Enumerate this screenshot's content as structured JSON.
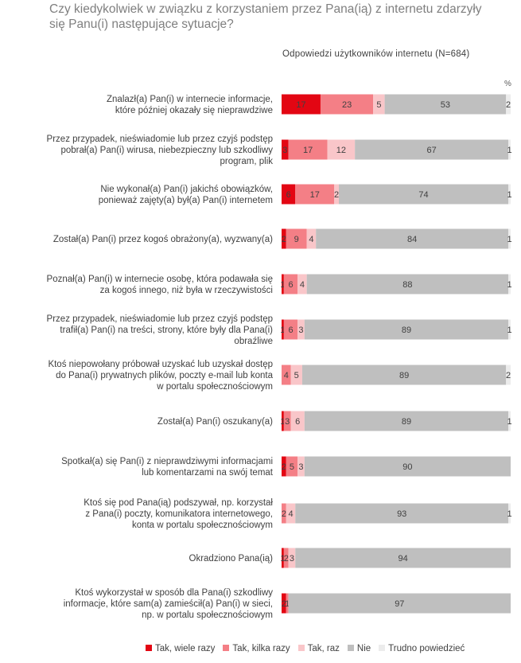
{
  "title": "Czy kiedykolwiek w związku z korzystaniem przez Pana(ią) z internetu zdarzyły się Panu(i) następujące sytuacje?",
  "subtitle": "Odpowiedzi użytkowników internetu (N=684)",
  "unit_label": "%",
  "chart_data": {
    "type": "bar",
    "orientation": "horizontal",
    "stacked": true,
    "xlim": [
      0,
      100
    ],
    "categories": [
      [
        "Znalazł(a) Pan(i) w internecie informacje,",
        "które później okazały się nieprawdziwe"
      ],
      [
        "Przez przypadek, nieświadomie lub przez czyjś podstęp",
        "pobrał(a) Pan(i) wirusa, niebezpieczny lub szkodliwy",
        "program, plik"
      ],
      [
        "Nie wykonał(a) Pan(i) jakichś obowiązków,",
        "ponieważ zajęty(a) był(a) Pan(i) internetem"
      ],
      [
        "Został(a) Pan(i) przez kogoś obrażony(a), wyzwany(a)"
      ],
      [
        "Poznał(a) Pan(i) w internecie osobę, która podawała się",
        "za kogoś innego, niż była w rzeczywistości"
      ],
      [
        "Przez przypadek, nieświadomie lub przez czyjś podstęp",
        "trafił(a) Pan(i) na treści, strony, które były dla Pana(i)",
        "obraźliwe"
      ],
      [
        "Ktoś niepowołany próbował uzyskać lub uzyskał dostęp",
        "do Pana(i) prywatnych plików, poczty e-mail lub konta",
        "w portalu społecznościowym"
      ],
      [
        "Został(a) Pan(i) oszukany(a)"
      ],
      [
        "Spotkał(a) się Pan(i) z nieprawdziwymi informacjami",
        "lub komentarzami na swój temat"
      ],
      [
        "Ktoś się pod Pana(ią) podszywał, np. korzystał",
        "z Pana(i) poczty, komunikatora internetowego,",
        "konta w portalu społecznościowym"
      ],
      [
        "Okradziono Pana(ią)"
      ],
      [
        "Ktoś wykorzystał w sposób dla Pana(i) szkodliwy",
        "informacje, które sam(a) zamieścił(a) Pan(i) w sieci,",
        "np. w portalu społecznościowym"
      ]
    ],
    "series": [
      {
        "name": "Tak, wiele razy",
        "color": "#e30613",
        "values": [
          17,
          3,
          6,
          2,
          1,
          1,
          0,
          1,
          2,
          0,
          1,
          2
        ],
        "labels": [
          "17",
          "3",
          "6",
          "2",
          "1",
          "1",
          "",
          "1",
          "2",
          "",
          "1",
          "2"
        ]
      },
      {
        "name": "Tak, kilka razy",
        "color": "#f47f86",
        "values": [
          23,
          17,
          17,
          9,
          6,
          6,
          4,
          3,
          5,
          2,
          2,
          1
        ],
        "labels": [
          "23",
          "17",
          "17",
          "9",
          "6",
          "6",
          "4",
          "3",
          "5",
          "2",
          "2",
          "1"
        ]
      },
      {
        "name": "Tak, raz",
        "color": "#f9c6c9",
        "values": [
          5,
          12,
          2,
          4,
          4,
          3,
          5,
          6,
          3,
          4,
          3,
          0
        ],
        "labels": [
          "5",
          "12",
          "2",
          "4",
          "4",
          "3",
          "5",
          "6",
          "3",
          "4",
          "3",
          ""
        ]
      },
      {
        "name": "Nie",
        "color": "#bfbfbf",
        "values": [
          53,
          67,
          74,
          84,
          88,
          89,
          89,
          89,
          90,
          93,
          94,
          97
        ],
        "labels": [
          "53",
          "67",
          "74",
          "84",
          "88",
          "89",
          "89",
          "89",
          "90",
          "93",
          "94",
          "97"
        ]
      },
      {
        "name": "Trudno powiedzieć",
        "color": "#ececec",
        "values": [
          2,
          1,
          1,
          1,
          1,
          1,
          2,
          1,
          0,
          1,
          0,
          0
        ],
        "labels": [
          "2",
          "1",
          "1",
          "1",
          "1",
          "1",
          "2",
          "1",
          "",
          "1",
          "",
          ""
        ]
      }
    ],
    "legend_position": "bottom"
  }
}
